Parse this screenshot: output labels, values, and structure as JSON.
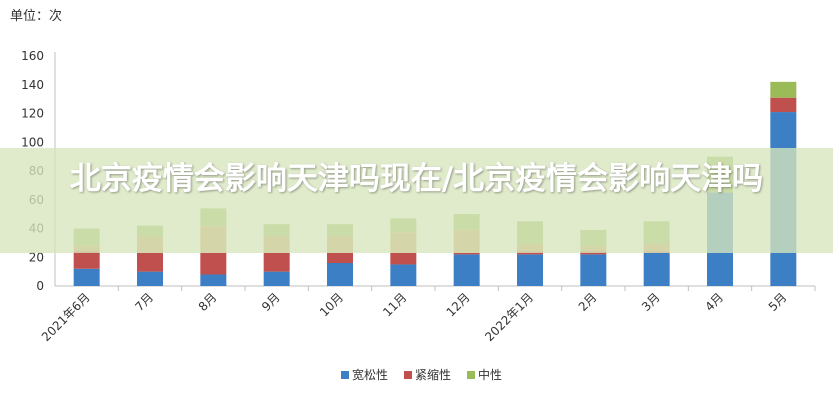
{
  "overlay_title": "北京疫情会影响天津吗现在/北京疫情会影响天津吗",
  "chart_data": {
    "type": "bar",
    "stacked": true,
    "unit_label": "单位：次",
    "categories": [
      "2021年6月",
      "7月",
      "8月",
      "9月",
      "10月",
      "11月",
      "12月",
      "2022年1月",
      "2月",
      "3月",
      "4月",
      "5月"
    ],
    "series": [
      {
        "name": "宽松性",
        "color": "#3c7fc4",
        "values": [
          12,
          10,
          8,
          10,
          16,
          15,
          22,
          22,
          22,
          23,
          65,
          121
        ]
      },
      {
        "name": "紧缩性",
        "color": "#c0504d",
        "values": [
          12,
          13,
          15,
          13,
          7,
          8,
          1,
          2,
          2,
          1,
          0,
          10
        ]
      },
      {
        "name": "中性",
        "color": "#9bbb59",
        "values": [
          16,
          19,
          31,
          20,
          20,
          24,
          27,
          21,
          15,
          21,
          25,
          11
        ]
      }
    ],
    "overlay_series_color": "#c9a064",
    "yticks": [
      0,
      20,
      40,
      60,
      80,
      100,
      120,
      140,
      160
    ],
    "ylim": [
      0,
      160
    ],
    "legend_position": "bottom"
  }
}
